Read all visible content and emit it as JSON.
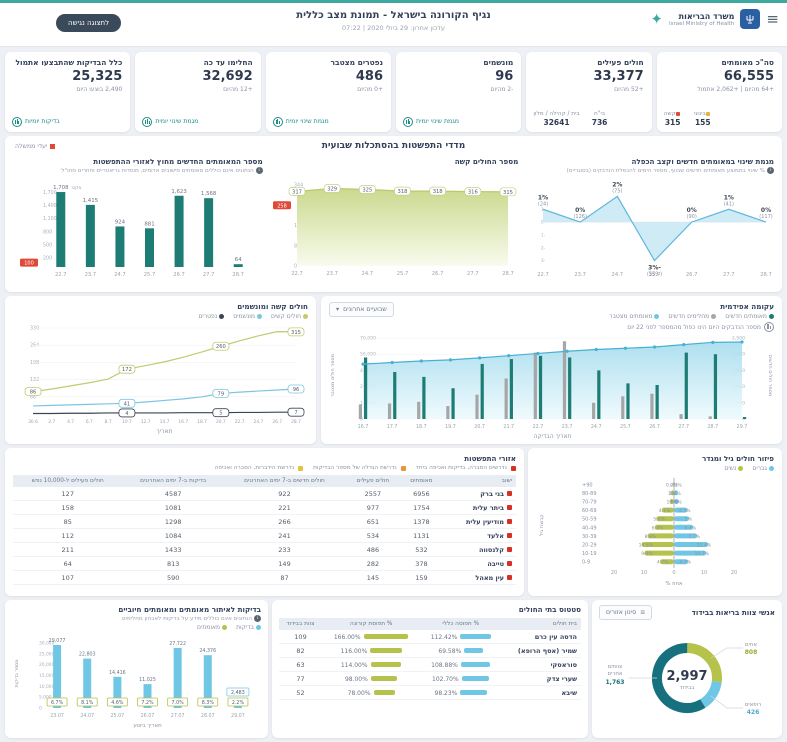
{
  "page": {
    "accessibility_button": "לתצוגה נגישה"
  },
  "header": {
    "title": "נגיף הקורונה בישראל - תמונת מצב כללית",
    "subtitle": "עדכון אחרון: 29 ביולי 2020 | 07:22",
    "logo_he": "משרד הבריאות",
    "logo_en": "Israel Ministry of Health"
  },
  "colors": {
    "teal": "#1d7c74",
    "light_blue": "#6fc7e5",
    "olive": "#b5c24b",
    "gray_bar": "#a6a6a6",
    "red": "#e04838",
    "accent": "#3fa8a0",
    "navy": "#2f3a4f",
    "cum_line": "#49b0d4",
    "yellow": "#e6b33d",
    "orange": "#e8963d",
    "dark_navy": "#33415a"
  },
  "kpis": [
    {
      "title": "סה\"כ מאומתים",
      "value": "66,555",
      "delta": "+64 מהיום | +2,062 אתמול",
      "breakdown": [
        {
          "label": "בינוני",
          "value": "155"
        },
        {
          "label": "קשה",
          "value": "315"
        }
      ]
    },
    {
      "title": "חולים פעילים",
      "value": "33,377",
      "delta": "+52 מהיום",
      "breakdown": [
        {
          "label": "בי\"ח",
          "value": "736"
        },
        {
          "label": "בית / קהילה / מלון",
          "value": "32641"
        }
      ]
    },
    {
      "title": "מונשמים",
      "value": "96",
      "delta": "-2 מהיום",
      "link": "מגמת שינוי יומית"
    },
    {
      "title": "נפטרים מצטבר",
      "value": "486",
      "delta": "+0 מהיום",
      "link": "מגמת שינוי יומית"
    },
    {
      "title": "החלימו עד כה",
      "value": "32,692",
      "delta": "+12 מהיום",
      "link": "מגמת שינוי יומית"
    },
    {
      "title": "כלל הבדיקות שהתבצעו אתמול",
      "value": "25,325",
      "delta": "2,490 בוצעו היום",
      "link": "בדיקות יומיות"
    }
  ],
  "weekly_section": {
    "title": "מדדי התפשטות בהסתכלות שבועית",
    "legend_label": "יעדי ממשלה"
  },
  "spread_table": {
    "title": "אזורי התפשטות",
    "legend": [
      {
        "label": "נדרשים הסברה, בדיקות ואכיפה ביחד",
        "color": "#d93025"
      },
      {
        "label": "נדרשת הגדלה של מספר הבדיקות",
        "color": "#e8963d"
      },
      {
        "label": "נדרשת הידברות, הסברה ואכיפה",
        "color": "#e6c33d"
      }
    ],
    "columns": [
      "ישוב",
      "מאומתים",
      "חולים פעילים",
      "חולים חדשים ב-7 ימים האחרונים",
      "בדיקות ב-7 ימים האחרונים",
      "חולים פעילים ל-10,000 נפש"
    ],
    "rows": [
      {
        "name": "בני ברק",
        "values": [
          "6956",
          "2557",
          "922",
          "4587",
          "127"
        ]
      },
      {
        "name": "ביתר עלית",
        "values": [
          "1754",
          "977",
          "221",
          "1081",
          "158"
        ]
      },
      {
        "name": "מודיעין עלית",
        "values": [
          "1378",
          "651",
          "266",
          "1298",
          "85"
        ]
      },
      {
        "name": "אלעד",
        "values": [
          "1131",
          "534",
          "241",
          "1084",
          "112"
        ]
      },
      {
        "name": "קלנסווה",
        "values": [
          "532",
          "486",
          "233",
          "1433",
          "211"
        ]
      },
      {
        "name": "טייבה",
        "values": [
          "378",
          "282",
          "149",
          "813",
          "64"
        ]
      },
      {
        "name": "עין מאהל",
        "values": [
          "159",
          "145",
          "87",
          "590",
          "107"
        ]
      }
    ]
  },
  "hospitals_table": {
    "title": "סטטוס בתי החולים",
    "columns": [
      "בית חולים",
      "% תפוסה כללי",
      "% תפוסת קורונה",
      "צוות בבידוד"
    ],
    "rows": [
      {
        "name": "הדסה עין כרם",
        "general": "112.42%",
        "corona": "166.00%",
        "staff": "109"
      },
      {
        "name": "שמיר (אסף הרופא)",
        "general": "69.58%",
        "corona": "116.00%",
        "staff": "82"
      },
      {
        "name": "סוראסקי",
        "general": "108.88%",
        "corona": "114.00%",
        "staff": "63"
      },
      {
        "name": "שערי צדק",
        "general": "102.70%",
        "corona": "98.00%",
        "staff": "77"
      },
      {
        "name": "שיבא",
        "general": "98.23%",
        "corona": "78.00%",
        "staff": "52"
      }
    ]
  },
  "chart_data": [
    {
      "type": "line",
      "title": "מגמת שינוי במאומתים חדשים וקצב הכפלה",
      "subtitle": "% שינוי בממוצע מאומתים חדשים שבועי, מספר הימים להכפלת הנדבקים (בסוגריים)",
      "x": [
        "22.7",
        "23.7",
        "24.7",
        "25.7",
        "26.7",
        "27.7",
        "28.7"
      ],
      "values": [
        1,
        0,
        2,
        -3,
        0,
        1,
        0
      ],
      "labels": [
        "1%",
        "0%",
        "2%",
        "-3%",
        "0%",
        "1%",
        "0%"
      ],
      "sublabels": [
        "(24)",
        "(126)",
        "(75)",
        "(-559)",
        "(90)",
        "(41)",
        "(117)"
      ],
      "ylim": [
        -3.5,
        2.5
      ],
      "yticks": [
        2,
        1,
        0,
        -1,
        -2,
        -3
      ]
    },
    {
      "type": "area",
      "title": "מספר החולים קשה",
      "x": [
        "22.7",
        "23.7",
        "24.7",
        "25.7",
        "26.7",
        "27.7",
        "28.7"
      ],
      "values": [
        317,
        329,
        325,
        318,
        318,
        316,
        315
      ],
      "target": 258,
      "yticks": [
        0,
        86,
        172,
        344
      ],
      "ylim": [
        0,
        344
      ]
    },
    {
      "type": "bar",
      "title": "מספר המאומתים החדשים מחוץ לאזורי ההתפשטות",
      "subtitle": "הנתונים אינם כוללים מאומתים מישובים אדומים, מוסדות גריאטריים וחוזרים מחו\"ל",
      "x": [
        "22.7",
        "23.7",
        "24.7",
        "25.7",
        "26.7",
        "27.7",
        "28.7"
      ],
      "values": [
        1708,
        1415,
        924,
        881,
        1623,
        1568,
        64
      ],
      "max_label": "מקס",
      "target": 100,
      "yticks": [
        200,
        500,
        800,
        1100,
        1400,
        1700
      ],
      "ylim": [
        0,
        1800
      ]
    },
    {
      "type": "line",
      "title": "חולים קשה ומונשמים",
      "xlabel": "תאריך",
      "x": [
        "30.6",
        "2.7",
        "4.7",
        "6.7",
        "8.7",
        "10.7",
        "12.7",
        "14.7",
        "16.7",
        "18.7",
        "20.7",
        "22.7",
        "24.7",
        "26.7",
        "28.7"
      ],
      "series": [
        {
          "name": "חולים קשים",
          "color": "#c3c96e",
          "values": [
            86,
            96,
            108,
            120,
            134,
            172,
            186,
            200,
            218,
            238,
            260,
            281,
            300,
            316,
            315
          ]
        },
        {
          "name": "מונשמים",
          "color": "#7cc5e0",
          "values": [
            31,
            33,
            35,
            37,
            39,
            41,
            46,
            52,
            58,
            66,
            79,
            84,
            88,
            92,
            96
          ]
        },
        {
          "name": "נפטרים",
          "color": "#3a4654",
          "values": [
            2,
            2,
            3,
            3,
            4,
            4,
            4,
            4,
            5,
            5,
            5,
            6,
            6,
            7,
            7
          ]
        }
      ],
      "point_labels": [
        {
          "s": 0,
          "i": 0,
          "t": "86"
        },
        {
          "s": 0,
          "i": 5,
          "t": "172"
        },
        {
          "s": 0,
          "i": 10,
          "t": "260"
        },
        {
          "s": 0,
          "i": 14,
          "t": "315"
        },
        {
          "s": 1,
          "i": 5,
          "t": "41"
        },
        {
          "s": 1,
          "i": 10,
          "t": "79"
        },
        {
          "s": 1,
          "i": 14,
          "t": "96"
        },
        {
          "s": 2,
          "i": 5,
          "t": "4"
        },
        {
          "s": 2,
          "i": 10,
          "t": "5"
        },
        {
          "s": 2,
          "i": 14,
          "t": "7"
        }
      ],
      "yticks": [
        66,
        132,
        198,
        264,
        330
      ],
      "ylim": [
        0,
        330
      ]
    },
    {
      "type": "combo",
      "title": "עקומה אפידמית",
      "dropdown": "שבועיים אחרונים",
      "note": "מספר הנדבקים היום הינו כפול מהמספר לפני 22 יום",
      "legend": [
        "מאומתים חדשים",
        "מחלימים חדשים",
        "מאומתים מצטבר"
      ],
      "ylabel_left": "מספר חולים מצטבר",
      "ylabel_right": "מספר חולים חדשים",
      "xlabel": "תאריך הבדיקה",
      "x": [
        "16.7",
        "17.7",
        "18.7",
        "19.7",
        "20.7",
        "21.7",
        "22.7",
        "23.7",
        "24.7",
        "25.7",
        "26.7",
        "27.7",
        "28.7",
        "29.7"
      ],
      "cumulative": [
        47400,
        48850,
        50150,
        51100,
        52850,
        54700,
        56650,
        58550,
        60050,
        61150,
        62200,
        64250,
        66250,
        66555
      ],
      "confirmed_new": [
        1900,
        1450,
        1300,
        950,
        1700,
        1850,
        1950,
        1900,
        1500,
        1100,
        1050,
        2050,
        2000,
        60
      ],
      "recovered_new": [
        450,
        480,
        530,
        400,
        750,
        1250,
        2050,
        2400,
        500,
        700,
        780,
        150,
        80,
        0
      ],
      "yticks_left": [
        0,
        14000,
        28000,
        42000,
        56000,
        70000
      ],
      "yticks_right": [
        0,
        500,
        1000,
        1500,
        2000,
        2500
      ]
    },
    {
      "type": "pyramid",
      "title": "פיזור חולים גיל ומגדר",
      "legend": [
        "גברים",
        "נשים"
      ],
      "xlabel": "אחוז %",
      "ylabel": "קבוצת גיל",
      "ages": [
        "90+",
        "80-89",
        "70-79",
        "60-69",
        "50-59",
        "40-49",
        "30-39",
        "20-29",
        "10-19",
        "0-9"
      ],
      "men_pct": [
        0.2,
        1.3,
        1.6,
        4.5,
        5.0,
        6.4,
        7.7,
        11.4,
        10.7,
        4.7
      ],
      "women_pct": [
        0.3,
        1.0,
        1.5,
        4.1,
        5.9,
        6.4,
        8.8,
        10.8,
        9.9,
        4.7
      ],
      "xticks": [
        20,
        10,
        0,
        10,
        20
      ]
    },
    {
      "type": "bar",
      "title": "בדיקות לאיתור מאומתים ומאומתים חיוביים",
      "subtitle": "הנתונים אינם כוללים מידע על בדיקות לאבחון מחלימים",
      "legend": [
        "בדיקות",
        "מאומתים"
      ],
      "ylabel": "מספר בדיקות",
      "xlabel": "תאריך ביצוע",
      "x": [
        "23.07",
        "24.07",
        "25.07",
        "26.07",
        "27.07",
        "28.07",
        "29.07"
      ],
      "tests": [
        29077,
        22803,
        14416,
        11025,
        27722,
        24376,
        2483
      ],
      "positive_pct": [
        "6.7%",
        "8.1%",
        "4.6%",
        "7.2%",
        "7.0%",
        "8.3%",
        "2.2%"
      ],
      "yticks": [
        0,
        5000,
        10000,
        15000,
        20000,
        25000,
        30000
      ],
      "ylim": [
        0,
        30000
      ]
    },
    {
      "type": "donut",
      "title": "אנשי צוות בריאות בבידוד",
      "button": "סינון אזורים",
      "center_value": "2,997",
      "center_label": "בבידוד",
      "slices": [
        {
          "label": "אחים",
          "value": 808,
          "display": "808",
          "color": "#b5c24b"
        },
        {
          "label": "רופאים",
          "value": 426,
          "display": "426",
          "color": "#6fc7e5"
        },
        {
          "label": "צוותים אחרים",
          "value": 1763,
          "display": "1,763",
          "color": "#17707e"
        }
      ]
    }
  ]
}
